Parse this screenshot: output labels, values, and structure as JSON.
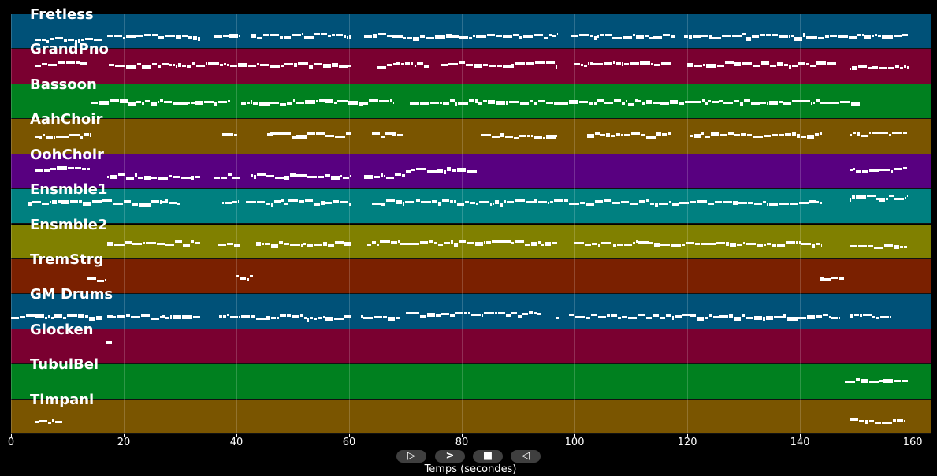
{
  "axis": {
    "xlabel": "Temps (secondes)",
    "ticks": [
      0,
      20,
      40,
      60,
      80,
      100,
      120,
      140,
      160
    ],
    "range": [
      0,
      163.2
    ]
  },
  "controls": [
    {
      "name": "play-button",
      "icon": "play-icon",
      "glyph": "▷"
    },
    {
      "name": "fast-forward-button",
      "icon": "fast-forward-icon",
      "glyph": ">"
    },
    {
      "name": "stop-button",
      "icon": "stop-icon",
      "glyph": "■"
    },
    {
      "name": "rewind-button",
      "icon": "rewind-icon",
      "glyph": "◁"
    }
  ],
  "tracks": [
    {
      "name": "Fretless",
      "color": "#005178",
      "segments": [
        [
          4.3,
          16.2,
          0.7
        ],
        [
          17,
          33.7,
          0.6
        ],
        [
          36,
          40.7,
          0.6
        ],
        [
          42.5,
          60.5,
          0.6
        ],
        [
          62.7,
          82,
          0.6
        ],
        [
          82,
          97,
          0.6
        ],
        [
          99.3,
          118,
          0.6
        ],
        [
          119.4,
          159.6,
          0.6
        ]
      ]
    },
    {
      "name": "GrandPno",
      "color": "#7a0030",
      "segments": [
        [
          4.3,
          13.5,
          0.4
        ],
        [
          17.3,
          60.5,
          0.42
        ],
        [
          65,
          74.3,
          0.42
        ],
        [
          76.4,
          97,
          0.4
        ],
        [
          100,
          117.2,
          0.4
        ],
        [
          120,
          146.5,
          0.4
        ],
        [
          148.8,
          159.6,
          0.5
        ]
      ]
    },
    {
      "name": "Bassoon",
      "color": "#00801f",
      "segments": [
        [
          14.3,
          39,
          0.48
        ],
        [
          40.8,
          68,
          0.48
        ],
        [
          70.8,
          150.8,
          0.48
        ]
      ]
    },
    {
      "name": "AahChoir",
      "color": "#7a5500",
      "segments": [
        [
          4.3,
          14.1,
          0.45
        ],
        [
          37.5,
          40.3,
          0.42
        ],
        [
          45.4,
          60.4,
          0.42
        ],
        [
          64,
          69.8,
          0.42
        ],
        [
          83.3,
          97,
          0.45
        ],
        [
          102.2,
          117.2,
          0.42
        ],
        [
          120.6,
          144,
          0.42
        ],
        [
          148.8,
          159.2,
          0.4
        ]
      ]
    },
    {
      "name": "OohChoir",
      "color": "#580080",
      "segments": [
        [
          4.3,
          14.1,
          0.4
        ],
        [
          17,
          33.7,
          0.6
        ],
        [
          36,
          40.7,
          0.6
        ],
        [
          42.5,
          60.5,
          0.6
        ],
        [
          62.7,
          70,
          0.6
        ],
        [
          70,
          83,
          0.42
        ],
        [
          148.8,
          159.2,
          0.42
        ]
      ]
    },
    {
      "name": "Ensmble1",
      "color": "#008080",
      "segments": [
        [
          3,
          30,
          0.35
        ],
        [
          37.5,
          40.3,
          0.35
        ],
        [
          41.7,
          60.4,
          0.35
        ],
        [
          64,
          144,
          0.35
        ],
        [
          148.8,
          159.2,
          0.2
        ]
      ]
    },
    {
      "name": "Ensmble2",
      "color": "#808000",
      "segments": [
        [
          17,
          33.7,
          0.52
        ],
        [
          36.8,
          40.7,
          0.52
        ],
        [
          43.5,
          60.4,
          0.52
        ],
        [
          63.2,
          97,
          0.5
        ],
        [
          100,
          144,
          0.52
        ],
        [
          148.8,
          159.2,
          0.6
        ]
      ]
    },
    {
      "name": "TremStrg",
      "color": "#7a2000",
      "segments": [
        [
          13.4,
          16.6,
          0.55
        ],
        [
          40,
          43.1,
          0.5
        ],
        [
          143.5,
          148,
          0.5
        ]
      ]
    },
    {
      "name": "GM Drums",
      "color": "#005178",
      "segments": [
        [
          0,
          16.2,
          0.6
        ],
        [
          17,
          33.7,
          0.62
        ],
        [
          36.9,
          60.5,
          0.62
        ],
        [
          62.1,
          69.1,
          0.6
        ],
        [
          70.1,
          94.3,
          0.55
        ],
        [
          96.6,
          97.3,
          0.6
        ],
        [
          99,
          147,
          0.6
        ],
        [
          148.8,
          156.1,
          0.6
        ]
      ]
    },
    {
      "name": "Glocken",
      "color": "#7a0030",
      "segments": [
        [
          16.8,
          18.2,
          0.35
        ]
      ]
    },
    {
      "name": "TubulBel",
      "color": "#00801f",
      "segments": [
        [
          4.2,
          4.4,
          0.45
        ],
        [
          148,
          159.3,
          0.45
        ]
      ]
    },
    {
      "name": "Timpani",
      "color": "#7a5500",
      "segments": [
        [
          4.3,
          9.2,
          0.6
        ],
        [
          148.8,
          158.9,
          0.6
        ]
      ]
    }
  ]
}
